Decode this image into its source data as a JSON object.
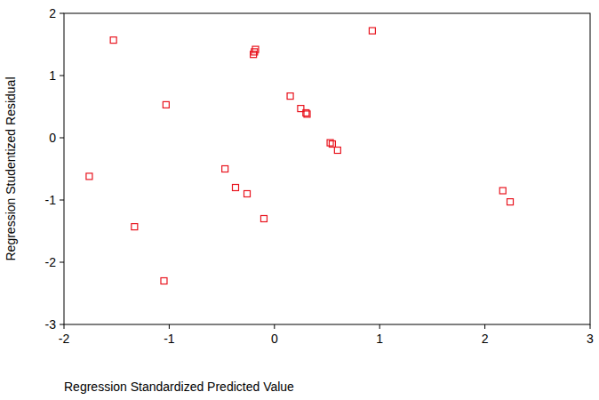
{
  "chart_data": {
    "type": "scatter",
    "x_label": "Regression Standardized Predicted Value",
    "y_label": "Regression Studentized Residual",
    "x": [
      -1.76,
      -1.53,
      -1.03,
      -1.33,
      -1.05,
      -0.47,
      -0.37,
      -0.26,
      -0.1,
      -0.2,
      -0.19,
      -0.18,
      0.15,
      0.25,
      0.3,
      0.31,
      0.53,
      0.55,
      0.6,
      0.93,
      2.17,
      2.24
    ],
    "values": [
      -0.62,
      1.57,
      0.53,
      -1.43,
      -2.3,
      -0.5,
      -0.8,
      -0.9,
      -1.3,
      1.34,
      1.38,
      1.42,
      0.67,
      0.47,
      0.4,
      0.38,
      -0.08,
      -0.1,
      -0.2,
      1.72,
      -0.85,
      -1.03
    ],
    "color": "#e8141e",
    "marker": "square",
    "xlim": [
      -2,
      3
    ],
    "xticks": [
      -2,
      -1,
      0,
      1,
      2,
      3
    ],
    "ylim": [
      -3,
      2
    ],
    "yticks": [
      -3,
      -2,
      -1,
      0,
      1,
      2
    ],
    "grid": false
  }
}
